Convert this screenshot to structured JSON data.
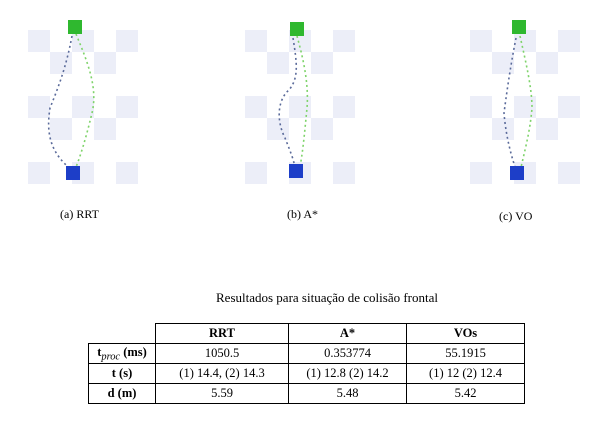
{
  "figures": [
    {
      "id": "rrt",
      "caption": "(a) RRT"
    },
    {
      "id": "astar",
      "caption": "(b) A*"
    },
    {
      "id": "vo",
      "caption": "(c) VO"
    }
  ],
  "colors": {
    "checker": "#eceef8",
    "path_blue": "#5a6a9a",
    "path_green": "#7ed36a",
    "robot_green": "#2fb82f",
    "robot_blue": "#1d3ec8"
  },
  "table": {
    "title": "Resultados para situação de colisão frontal",
    "columns": [
      "RRT",
      "A*",
      "VOs"
    ],
    "rows": [
      {
        "label_main": "t",
        "label_sub": "proc",
        "label_rest": " (ms)",
        "values": [
          "1050.5",
          "0.353774",
          "55.1915"
        ]
      },
      {
        "label_main": "t",
        "label_sub": "",
        "label_rest": " (s)",
        "values": [
          "(1) 14.4, (2) 14.3",
          "(1) 12.8 (2) 14.2",
          "(1) 12 (2) 12.4"
        ]
      },
      {
        "label_main": "d",
        "label_sub": "",
        "label_rest": " (m)",
        "values": [
          "5.59",
          "5.48",
          "5.42"
        ]
      }
    ]
  }
}
